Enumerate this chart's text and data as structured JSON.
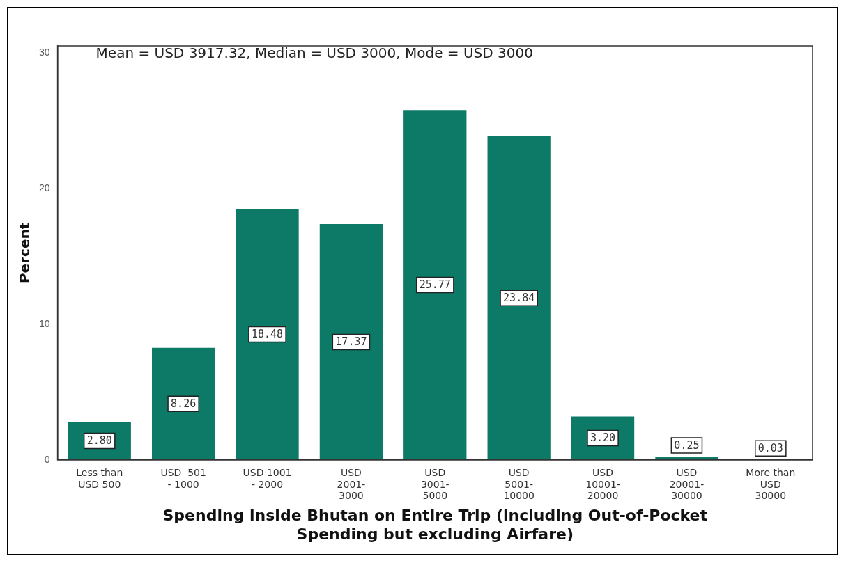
{
  "chart_data": {
    "type": "bar",
    "categories": [
      "Less than\nUSD 500",
      "USD  501\n- 1000",
      "USD 1001\n- 2000",
      "USD\n2001-\n3000",
      "USD\n3001-\n5000",
      "USD\n5001-\n10000",
      "USD\n10001-\n20000",
      "USD\n20001-\n30000",
      "More than\nUSD\n30000"
    ],
    "values": [
      2.8,
      8.26,
      18.48,
      17.37,
      25.77,
      23.84,
      3.2,
      0.25,
      0.03
    ],
    "color": "#0d7a68",
    "value_labels": [
      "2.80",
      "8.26",
      "18.48",
      "17.37",
      "25.77",
      "23.84",
      "3.20",
      "0.25",
      "0.03"
    ],
    "xlabel": "Spending inside Bhutan on Entire Trip (including Out-of-Pocket\nSpending but excluding Airfare)",
    "ylabel": "Percent",
    "ylim": [
      0,
      30.5
    ],
    "yticks": [
      0,
      10,
      20,
      30
    ],
    "annotations": [
      "Mean = USD 3917.32, Median = USD 3000, Mode = USD 3000"
    ],
    "grid": false,
    "legend": false
  }
}
